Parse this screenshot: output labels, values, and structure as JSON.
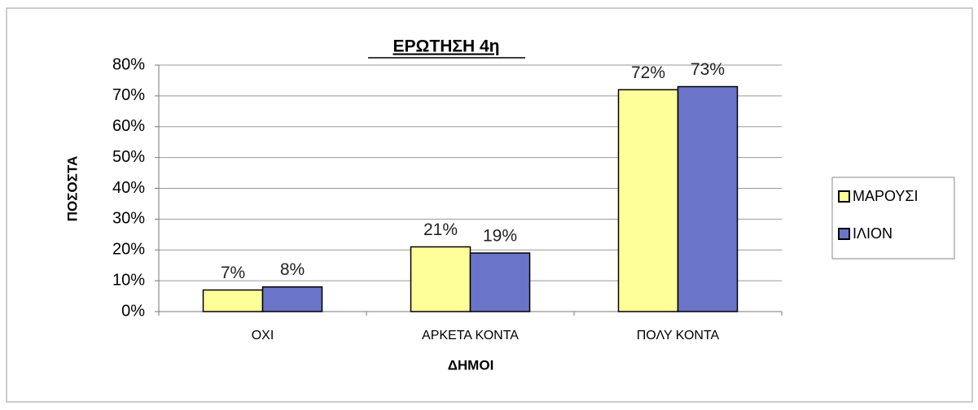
{
  "chart_data": {
    "type": "bar",
    "title": "ΕΡΩΤΗΣΗ 4η",
    "x_label": "ΔΗΜΟΙ",
    "y_label": "ΠΟΣΟΣΤΑ",
    "categories": [
      "ΟΧΙ",
      "ΑΡΚΕΤΑ ΚΟΝΤΑ",
      "ΠΟΛΥ ΚΟΝΤΑ"
    ],
    "series": [
      {
        "name": "ΜΑΡΟΥΣΙ",
        "color": "#ffff99",
        "values": [
          7,
          21,
          72
        ],
        "value_labels": [
          "7%",
          "21%",
          "72%"
        ]
      },
      {
        "name": "ΙΛΙΟΝ",
        "color": "#6a74c8",
        "values": [
          8,
          19,
          73
        ],
        "value_labels": [
          "8%",
          "19%",
          "73%"
        ]
      }
    ],
    "ylim": [
      0,
      80
    ],
    "yticks": [
      {
        "value": 0,
        "label": "0%"
      },
      {
        "value": 10,
        "label": "10%"
      },
      {
        "value": 20,
        "label": "20%"
      },
      {
        "value": 30,
        "label": "30%"
      },
      {
        "value": 40,
        "label": "40%"
      },
      {
        "value": 50,
        "label": "50%"
      },
      {
        "value": 60,
        "label": "60%"
      },
      {
        "value": 70,
        "label": "70%"
      },
      {
        "value": 80,
        "label": "80%"
      }
    ],
    "grid": true,
    "legend": "right"
  }
}
